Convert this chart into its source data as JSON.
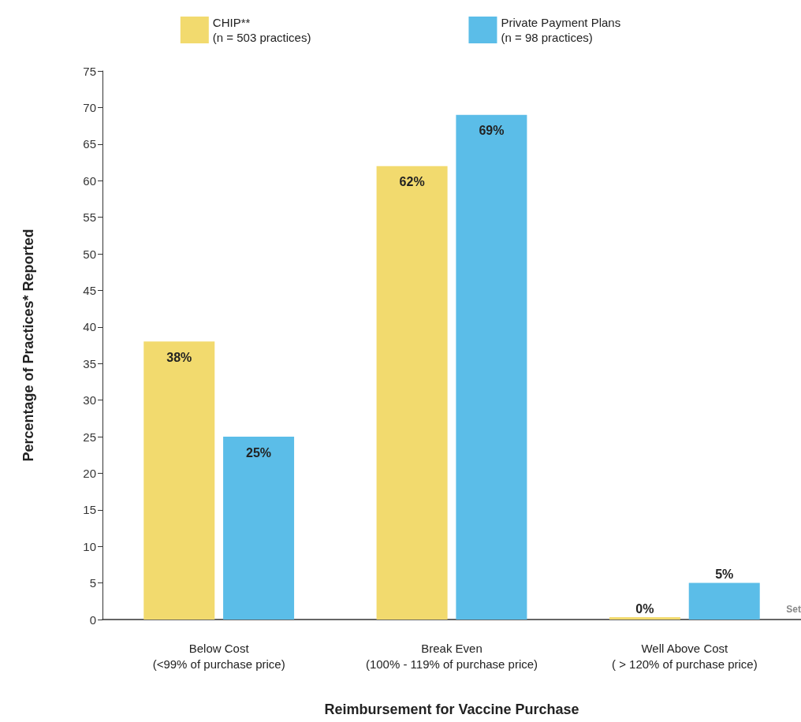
{
  "chart_data": {
    "type": "bar",
    "xlabel": "Reimbursement for Vaccine Purchase",
    "ylabel": "Percentage of Practices* Reported",
    "categories": [
      "Below Cost\n(<99% of purchase price)",
      "Break Even\n(100% - 119% of purchase price)",
      "Well Above Cost\n( > 120% of purchase price)"
    ],
    "series": [
      {
        "name": "CHIP**\n(n = 503 practices)",
        "color": "#f2da6e",
        "values": [
          38,
          62,
          0
        ],
        "value_labels": [
          "38%",
          "62%",
          "0%"
        ]
      },
      {
        "name": "Private Payment Plans\n(n = 98 practices)",
        "color": "#5bbde8",
        "values": [
          25,
          69,
          5
        ],
        "value_labels": [
          "25%",
          "69%",
          "5%"
        ]
      }
    ],
    "ylim": [
      0,
      75
    ],
    "yticks": [
      0,
      5,
      10,
      15,
      20,
      25,
      30,
      35,
      40,
      45,
      50,
      55,
      60,
      65,
      70,
      75
    ],
    "grid": false,
    "legend": "top",
    "annotations": [
      "Set"
    ]
  }
}
